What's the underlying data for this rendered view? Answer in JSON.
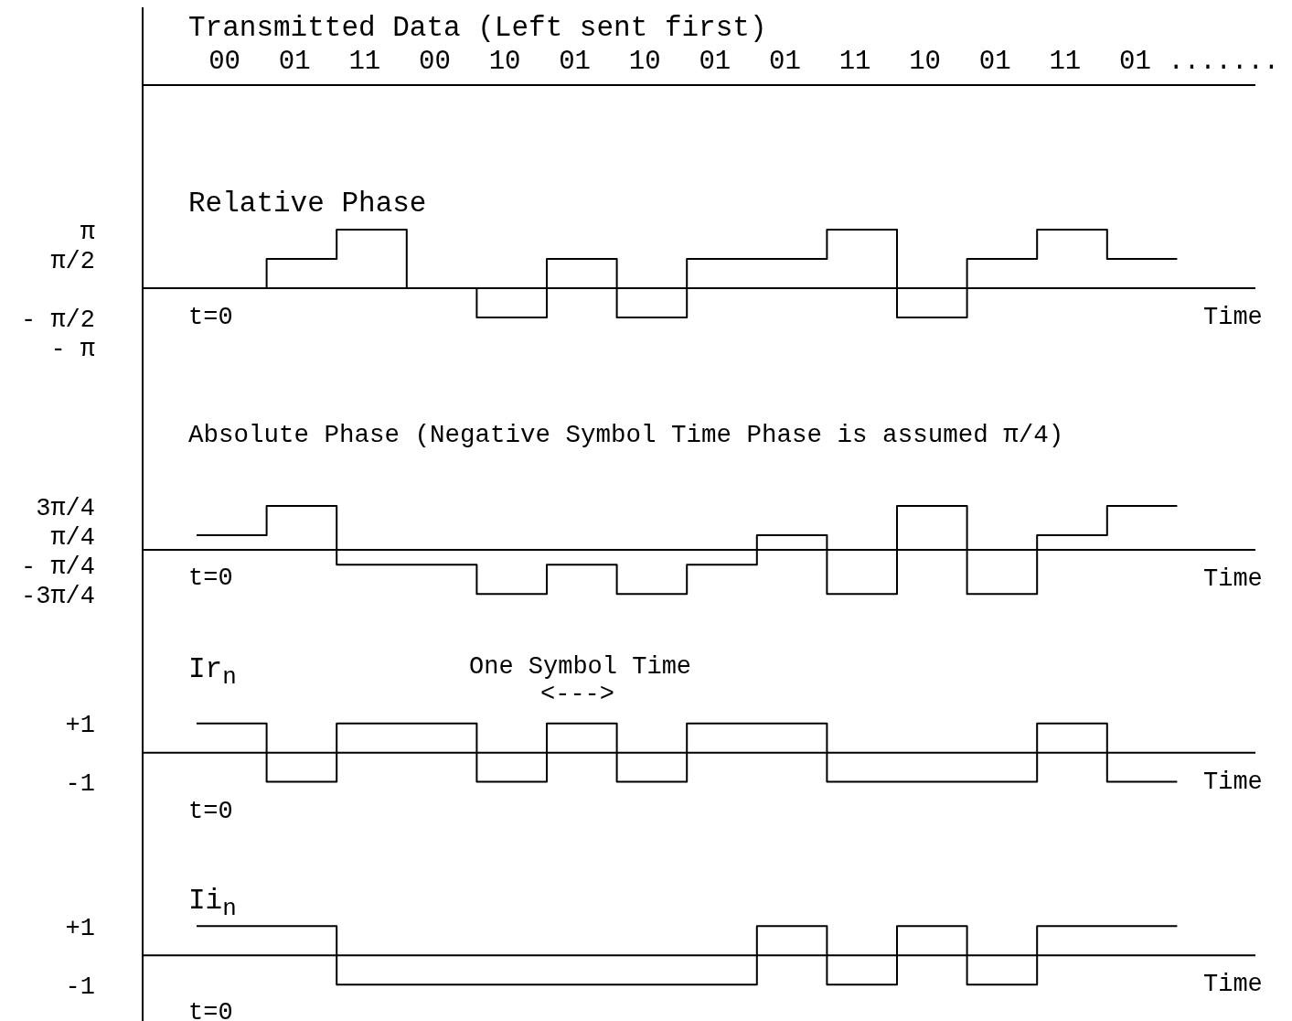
{
  "chart_data": [
    {
      "type": "other",
      "title": "Transmitted Data (Left sent first)",
      "categories": [
        "00",
        "01",
        "11",
        "00",
        "10",
        "01",
        "10",
        "01",
        "01",
        "11",
        "10",
        "01",
        "11",
        "01"
      ],
      "annotations": [
        "......."
      ]
    },
    {
      "type": "step",
      "title": "Relative Phase",
      "xlabel": "Time",
      "categories": [
        null,
        null,
        null,
        null,
        null,
        null,
        null,
        null,
        null,
        null,
        null,
        null,
        null,
        null,
        null
      ],
      "ylim": [
        -4.56,
        15.07
      ],
      "yticks": [
        {
          "value": 3.14,
          "label": "π"
        },
        {
          "value": 1.57,
          "label": "π/2"
        },
        {
          "value": -1.57,
          "label": "- π/2"
        },
        {
          "value": -3.14,
          "label": "- π"
        }
      ],
      "tick_labels": "y",
      "series": [
        {
          "color": "#000000",
          "values": [
            0,
            1.57,
            3.14,
            0,
            -1.57,
            1.57,
            -1.57,
            1.57,
            1.57,
            3.14,
            -1.57,
            1.57,
            3.14,
            1.57,
            1.57
          ]
        }
      ],
      "annotations": [
        "t=0"
      ]
    },
    {
      "type": "step",
      "title": "Absolute Phase (Negative Symbol Time Phase is assumed π/4)",
      "xlabel": "Time",
      "categories": [
        null,
        null,
        null,
        null,
        null,
        null,
        null,
        null,
        null,
        null,
        null,
        null,
        null,
        null,
        null
      ],
      "ylim": [
        -4.27,
        9.49
      ],
      "yticks": [
        {
          "value": 2.36,
          "label": "3π/4"
        },
        {
          "value": 0.79,
          "label": "π/4"
        },
        {
          "value": -0.79,
          "label": "- π/4"
        },
        {
          "value": -2.36,
          "label": "-3π/4"
        }
      ],
      "tick_labels": "y",
      "series": [
        {
          "color": "#000000",
          "values": [
            0.79,
            2.36,
            -0.79,
            -0.79,
            -2.36,
            -0.79,
            -2.36,
            -0.79,
            0.79,
            -2.36,
            2.36,
            -2.36,
            0.79,
            2.36,
            2.36
          ]
        }
      ],
      "annotations": [
        "t=0"
      ]
    },
    {
      "type": "step",
      "title": "Ir$_{n}$",
      "xlabel": "Time",
      "categories": [
        null,
        null,
        null,
        null,
        null,
        null,
        null,
        null,
        null,
        null,
        null,
        null,
        null,
        null,
        null
      ],
      "ylim": [
        -3.3,
        4.22
      ],
      "yticks": [
        {
          "value": 1,
          "label": "+1"
        },
        {
          "value": -1,
          "label": "-1"
        }
      ],
      "tick_labels": "y",
      "series": [
        {
          "color": "#000000",
          "values": [
            1,
            -1,
            1,
            1,
            -1,
            1,
            -1,
            1,
            1,
            -1,
            -1,
            -1,
            1,
            -1,
            -1
          ]
        }
      ],
      "annotations": [
        "t=0",
        "One Symbol Time",
        "<--->"
      ]
    },
    {
      "type": "step",
      "title": "Ii$_{n}$",
      "xlabel": "Time",
      "categories": [
        null,
        null,
        null,
        null,
        null,
        null,
        null,
        null,
        null,
        null,
        null,
        null,
        null,
        null,
        null
      ],
      "ylim": [
        -2.3,
        3.63
      ],
      "yticks": [
        {
          "value": 1,
          "label": "+1"
        },
        {
          "value": -1,
          "label": "-1"
        }
      ],
      "tick_labels": "y",
      "series": [
        {
          "color": "#000000",
          "values": [
            1,
            1,
            -1,
            -1,
            -1,
            -1,
            -1,
            -1,
            1,
            -1,
            1,
            -1,
            1,
            1,
            1
          ]
        }
      ],
      "annotations": [
        "t=0"
      ]
    }
  ]
}
